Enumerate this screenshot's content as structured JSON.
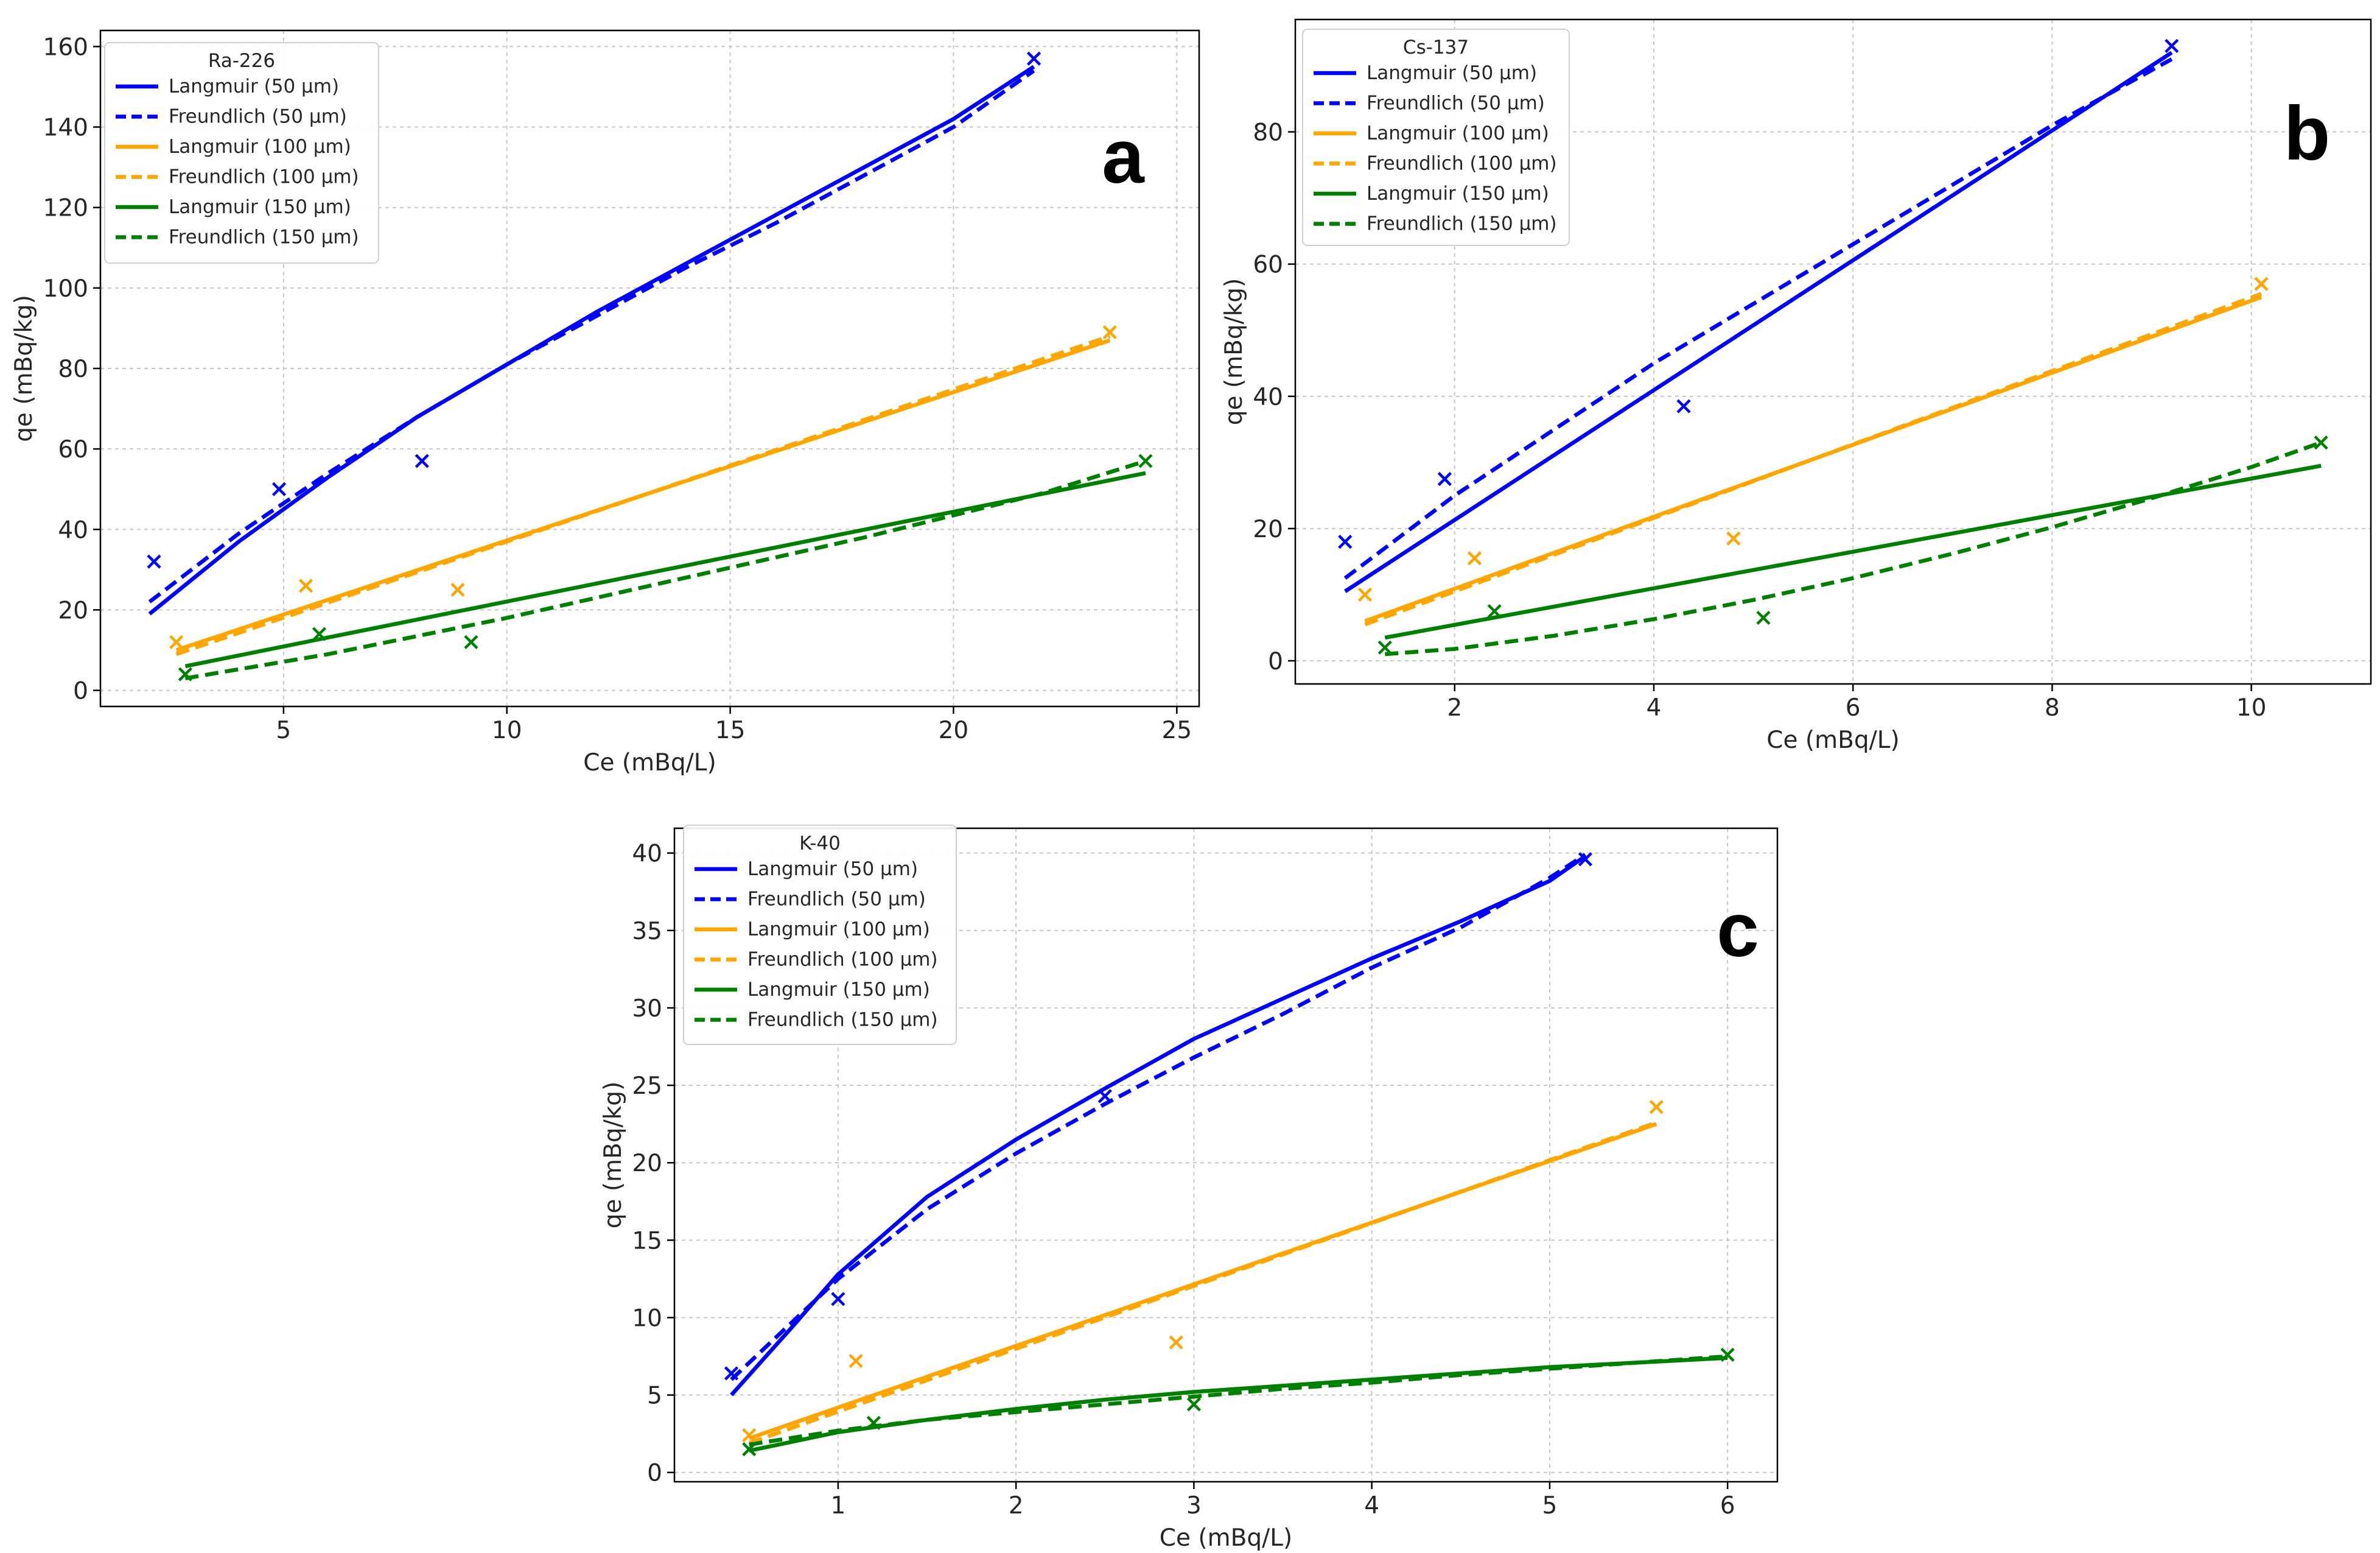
{
  "chart_data": [
    {
      "type": "line",
      "panel_label": "a",
      "legend_title": "Ra-226",
      "xlabel": "Ce (mBq/L)",
      "ylabel": "qe (mBq/kg)",
      "xlim": [
        0.9,
        25.5
      ],
      "ylim": [
        -4,
        164
      ],
      "xticks": [
        5,
        10,
        15,
        20,
        25
      ],
      "yticks": [
        0,
        20,
        40,
        60,
        80,
        100,
        120,
        140,
        160
      ],
      "grid": true,
      "legend_position": "upper left",
      "series": [
        {
          "name": "Langmuir (50 µm)",
          "color": "#0000ff",
          "dash": "solid",
          "x": [
            2.0,
            4.0,
            6.0,
            8.0,
            10.0,
            12.0,
            14.0,
            16.0,
            18.0,
            20.0,
            21.8
          ],
          "y": [
            19,
            37,
            53,
            68,
            81,
            94,
            106,
            118,
            130,
            142,
            155
          ]
        },
        {
          "name": "Freundlich (50 µm)",
          "color": "#0000ff",
          "dash": "dashed",
          "x": [
            2.0,
            4.0,
            6.0,
            8.0,
            10.0,
            12.0,
            14.0,
            16.0,
            18.0,
            20.0,
            21.8
          ],
          "y": [
            22,
            39,
            54,
            68,
            81,
            93,
            105,
            116,
            128,
            140,
            154
          ]
        },
        {
          "name": "Langmuir (100 µm)",
          "color": "#ffa500",
          "dash": "solid",
          "x": [
            2.6,
            23.5
          ],
          "y": [
            10,
            87
          ]
        },
        {
          "name": "Freundlich (100 µm)",
          "color": "#ffa500",
          "dash": "dashed",
          "x": [
            2.6,
            23.5
          ],
          "y": [
            9,
            88
          ]
        },
        {
          "name": "Langmuir (150 µm)",
          "color": "#008000",
          "dash": "solid",
          "x": [
            2.8,
            24.3
          ],
          "y": [
            6,
            54
          ]
        },
        {
          "name": "Freundlich (150 µm)",
          "color": "#008000",
          "dash": "dashed",
          "x": [
            2.8,
            6.0,
            10.0,
            14.0,
            18.0,
            22.0,
            24.3
          ],
          "y": [
            3,
            9,
            18,
            28,
            38,
            49,
            57
          ]
        }
      ],
      "points": [
        {
          "name": "50 µm data",
          "color": "#0000ff",
          "x": [
            2.1,
            4.9,
            8.1,
            21.8
          ],
          "y": [
            32,
            50,
            57,
            157
          ]
        },
        {
          "name": "100 µm data",
          "color": "#ffa500",
          "x": [
            2.6,
            5.5,
            8.9,
            23.5
          ],
          "y": [
            12,
            26,
            25,
            89
          ]
        },
        {
          "name": "150 µm data",
          "color": "#008000",
          "x": [
            2.8,
            5.8,
            9.2,
            24.3
          ],
          "y": [
            4,
            14,
            12,
            57
          ]
        }
      ]
    },
    {
      "type": "line",
      "panel_label": "b",
      "legend_title": "Cs-137",
      "xlabel": "Ce (mBq/L)",
      "ylabel": "qe (mBq/kg)",
      "xlim": [
        0.4,
        11.2
      ],
      "ylim": [
        -3.5,
        97
      ],
      "xticks": [
        2,
        4,
        6,
        8,
        10
      ],
      "yticks": [
        0,
        20,
        40,
        60,
        80
      ],
      "grid": true,
      "legend_position": "upper left",
      "series": [
        {
          "name": "Langmuir (50 µm)",
          "color": "#0000ff",
          "dash": "solid",
          "x": [
            0.9,
            9.2
          ],
          "y": [
            10.5,
            92
          ]
        },
        {
          "name": "Freundlich (50 µm)",
          "color": "#0000ff",
          "dash": "dashed",
          "x": [
            0.9,
            2.0,
            3.0,
            4.0,
            5.0,
            6.0,
            7.0,
            8.0,
            9.2
          ],
          "y": [
            12.5,
            25,
            35,
            45,
            54,
            63,
            72,
            81,
            91
          ]
        },
        {
          "name": "Langmuir (100 µm)",
          "color": "#ffa500",
          "dash": "solid",
          "x": [
            1.1,
            10.1
          ],
          "y": [
            6,
            55
          ]
        },
        {
          "name": "Freundlich (100 µm)",
          "color": "#ffa500",
          "dash": "dashed",
          "x": [
            1.1,
            10.1
          ],
          "y": [
            5.5,
            55.5
          ]
        },
        {
          "name": "Langmuir (150 µm)",
          "color": "#008000",
          "dash": "solid",
          "x": [
            1.3,
            10.7
          ],
          "y": [
            3.5,
            29.5
          ]
        },
        {
          "name": "Freundlich (150 µm)",
          "color": "#008000",
          "dash": "dashed",
          "x": [
            1.3,
            2.0,
            3.0,
            4.0,
            5.0,
            6.0,
            7.0,
            8.0,
            9.0,
            10.0,
            10.7
          ],
          "y": [
            1,
            1.8,
            3.8,
            6.3,
            9.2,
            12.5,
            16.2,
            20.2,
            24.6,
            29.3,
            33
          ]
        }
      ],
      "points": [
        {
          "name": "50 µm data",
          "color": "#0000ff",
          "x": [
            0.9,
            1.9,
            4.3,
            9.2
          ],
          "y": [
            18,
            27.5,
            38.5,
            93
          ]
        },
        {
          "name": "100 µm data",
          "color": "#ffa500",
          "x": [
            1.1,
            2.2,
            4.8,
            10.1
          ],
          "y": [
            10,
            15.5,
            18.5,
            57
          ]
        },
        {
          "name": "150 µm data",
          "color": "#008000",
          "x": [
            1.3,
            2.4,
            5.1,
            10.7
          ],
          "y": [
            2,
            7.5,
            6.5,
            33
          ]
        }
      ]
    },
    {
      "type": "line",
      "panel_label": "c",
      "legend_title": "K-40",
      "xlabel": "Ce (mBq/L)",
      "ylabel": "qe (mBq/kg)",
      "xlim": [
        0.08,
        6.28
      ],
      "ylim": [
        -0.6,
        41.6
      ],
      "xticks": [
        1,
        2,
        3,
        4,
        5,
        6
      ],
      "yticks": [
        0,
        5,
        10,
        15,
        20,
        25,
        30,
        35,
        40
      ],
      "grid": true,
      "legend_position": "upper left",
      "series": [
        {
          "name": "Langmuir (50 µm)",
          "color": "#0000ff",
          "dash": "solid",
          "x": [
            0.4,
            0.75,
            1.0,
            1.5,
            2.0,
            2.5,
            3.0,
            3.5,
            4.0,
            4.5,
            5.0,
            5.2
          ],
          "y": [
            5,
            9.5,
            12.8,
            17.8,
            21.5,
            24.8,
            28,
            30.6,
            33.2,
            35.6,
            38.2,
            39.8
          ]
        },
        {
          "name": "Freundlich (50 µm)",
          "color": "#0000ff",
          "dash": "dashed",
          "x": [
            0.4,
            0.75,
            1.0,
            1.5,
            2.0,
            2.5,
            3.0,
            3.5,
            4.0,
            4.5,
            5.0,
            5.2
          ],
          "y": [
            6,
            9.8,
            12.5,
            17,
            20.6,
            23.8,
            26.8,
            29.6,
            32.6,
            35.2,
            38.4,
            39.9
          ]
        },
        {
          "name": "Langmuir (100 µm)",
          "color": "#ffa500",
          "dash": "solid",
          "x": [
            0.5,
            5.6
          ],
          "y": [
            2.2,
            22.5
          ]
        },
        {
          "name": "Freundlich (100 µm)",
          "color": "#ffa500",
          "dash": "dashed",
          "x": [
            0.5,
            5.6
          ],
          "y": [
            1.9,
            22.6
          ]
        },
        {
          "name": "Langmuir (150 µm)",
          "color": "#008000",
          "dash": "solid",
          "x": [
            0.5,
            1.0,
            1.5,
            2.0,
            2.5,
            3.0,
            3.5,
            4.0,
            4.5,
            5.0,
            5.5,
            6.0
          ],
          "y": [
            1.4,
            2.6,
            3.4,
            4.1,
            4.7,
            5.2,
            5.6,
            6.0,
            6.4,
            6.8,
            7.1,
            7.4
          ]
        },
        {
          "name": "Freundlich (150 µm)",
          "color": "#008000",
          "dash": "dashed",
          "x": [
            0.5,
            1.0,
            1.5,
            2.0,
            2.5,
            3.0,
            3.5,
            4.0,
            4.5,
            5.0,
            5.5,
            6.0
          ],
          "y": [
            1.8,
            2.7,
            3.4,
            3.9,
            4.4,
            4.9,
            5.4,
            5.8,
            6.3,
            6.7,
            7.1,
            7.5
          ]
        }
      ],
      "points": [
        {
          "name": "50 µm data",
          "color": "#0000ff",
          "x": [
            0.4,
            1.0,
            2.5,
            5.2
          ],
          "y": [
            6.4,
            11.2,
            24.3,
            39.6
          ]
        },
        {
          "name": "100 µm data",
          "color": "#ffa500",
          "x": [
            0.5,
            1.1,
            2.9,
            5.6
          ],
          "y": [
            2.4,
            7.2,
            8.4,
            23.6
          ]
        },
        {
          "name": "150 µm data",
          "color": "#008000",
          "x": [
            0.5,
            1.2,
            3.0,
            6.0
          ],
          "y": [
            1.5,
            3.2,
            4.4,
            7.6
          ]
        }
      ]
    }
  ]
}
